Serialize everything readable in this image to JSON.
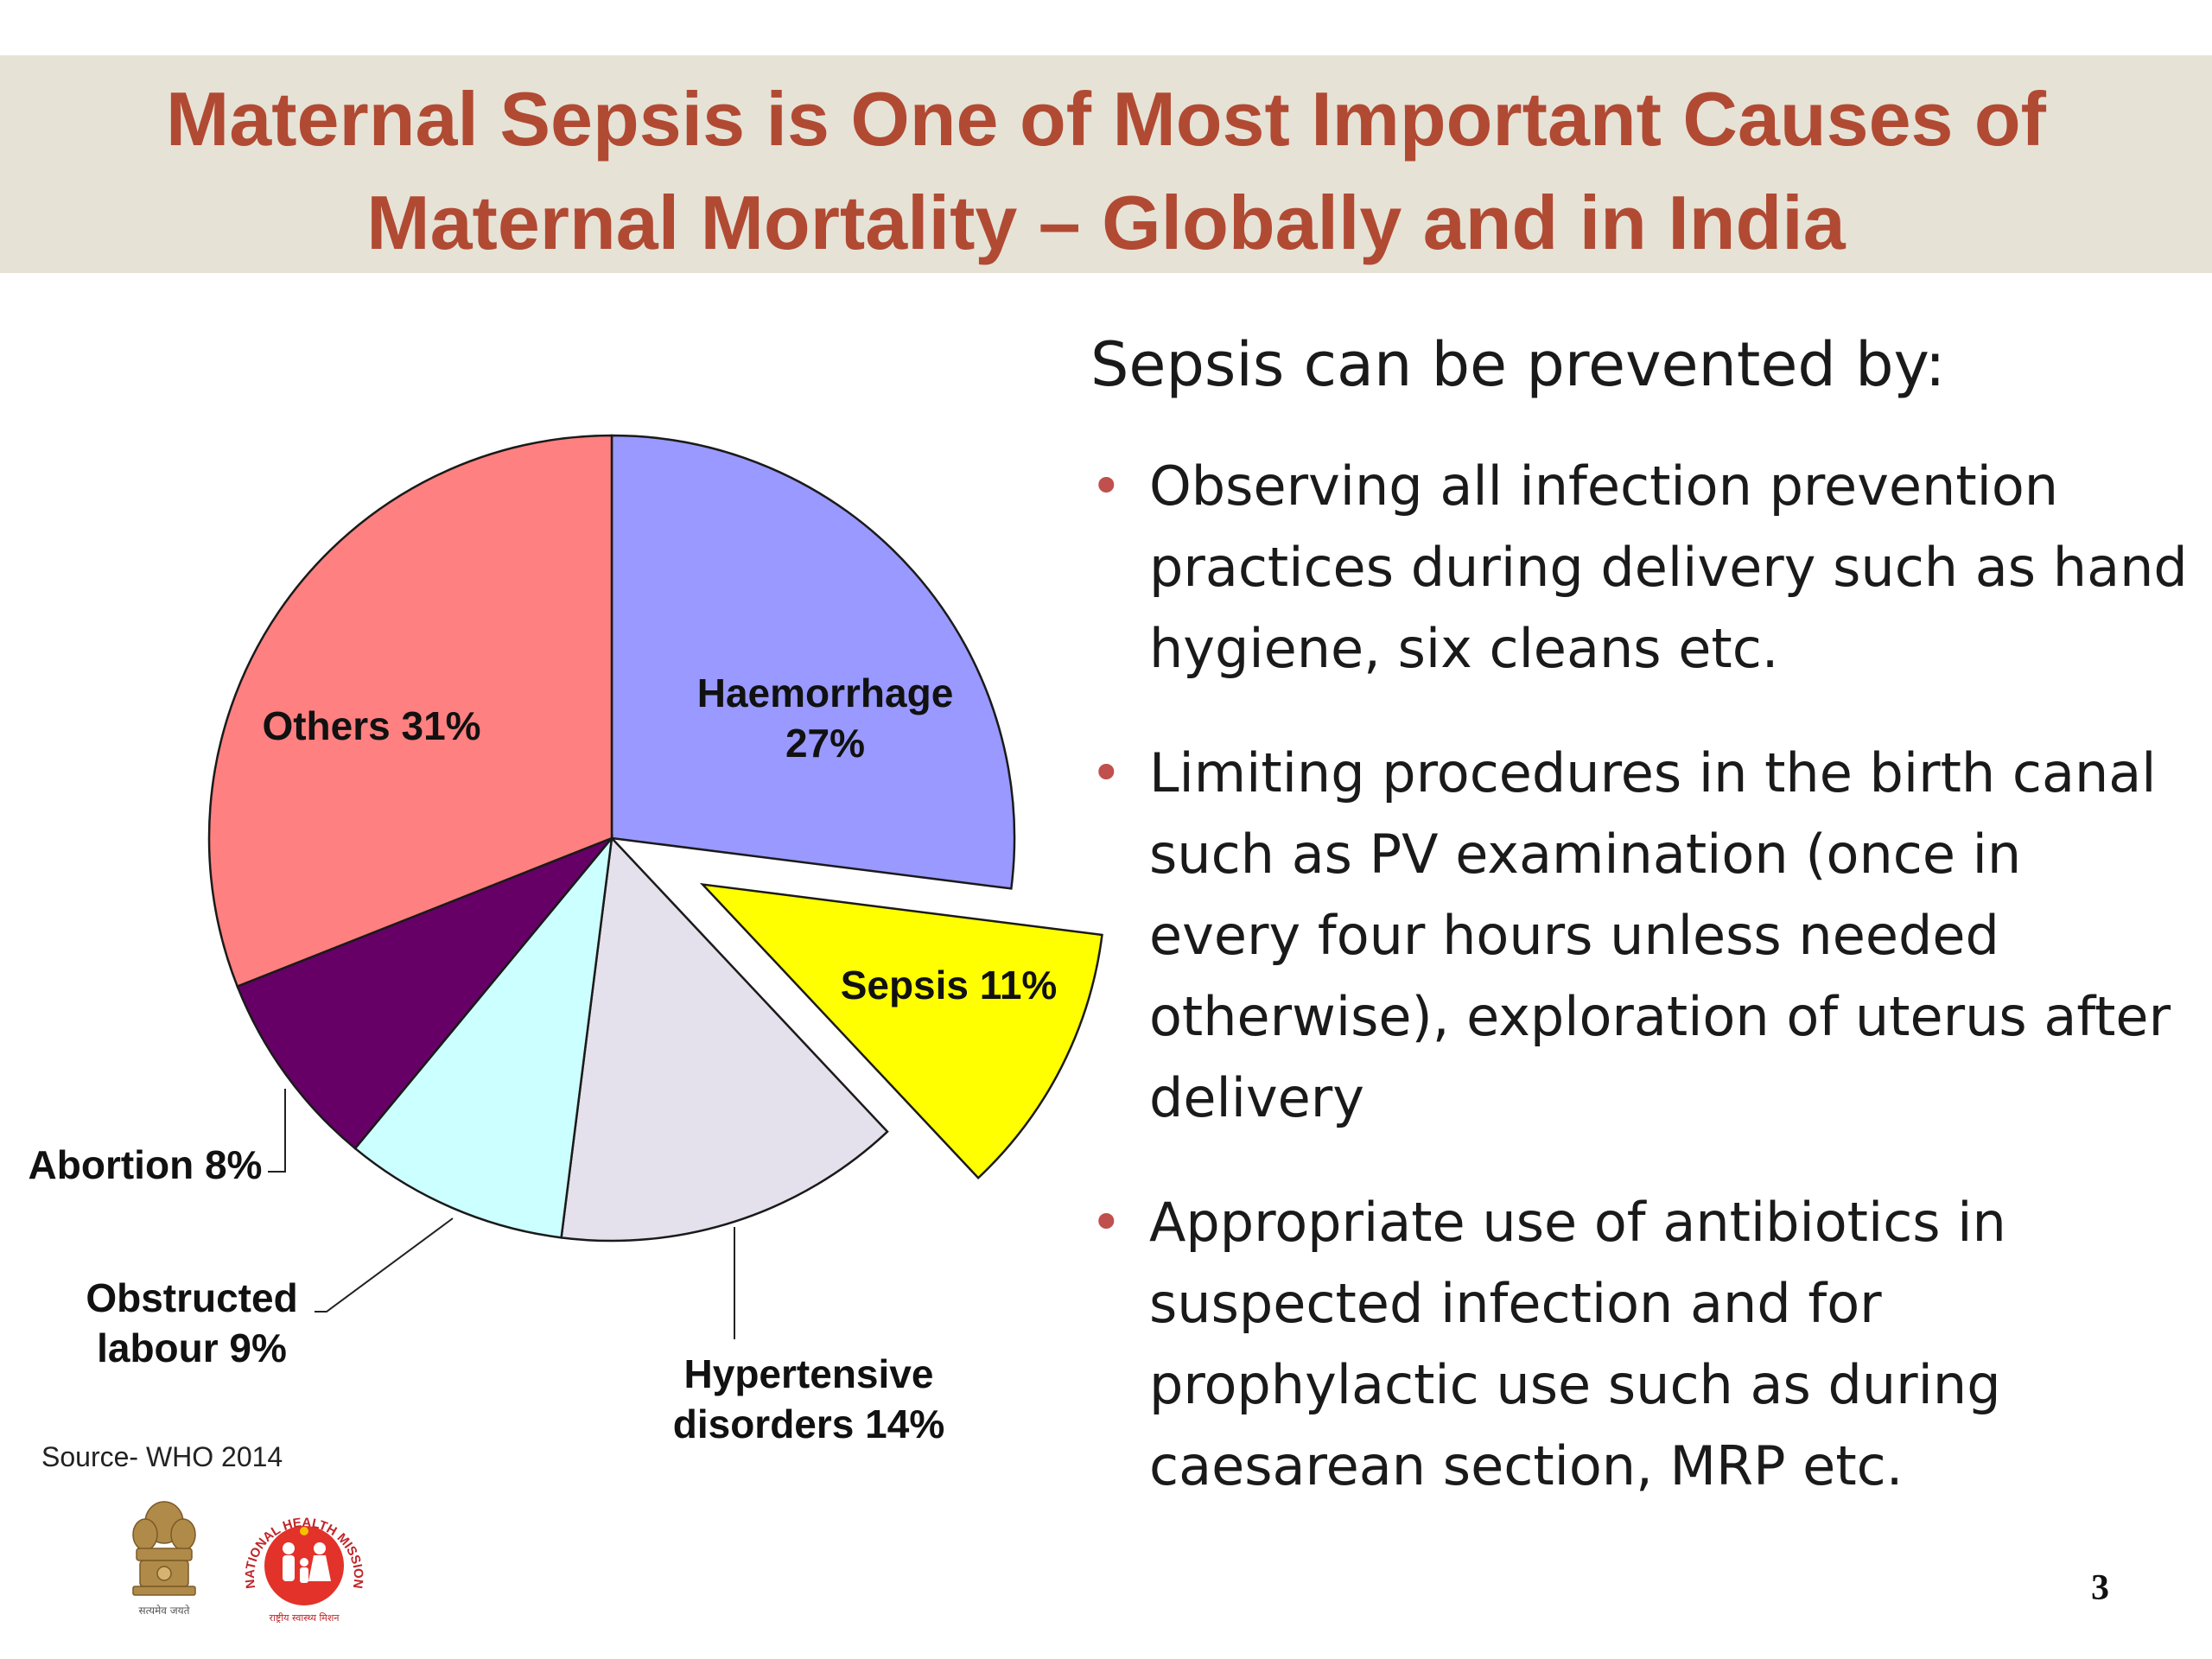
{
  "slide": {
    "title_line1": "Maternal Sepsis is One of Most Important Causes of",
    "title_line2": "Maternal Mortality – Globally and in India",
    "source": "Source- WHO 2014",
    "page_number": "3"
  },
  "prevention": {
    "heading": "Sepsis can be prevented by:",
    "bullets": [
      "Observing all infection prevention practices during delivery such as hand hygiene, six cleans etc.",
      "Limiting procedures in the birth canal such as PV examination (once in every four hours unless needed otherwise), exploration of uterus after delivery",
      "Appropriate use of antibiotics in suspected infection and for prophylactic use such as during caesarean section, MRP etc."
    ]
  },
  "logos": {
    "emblem_caption": "सत्यमेव जयते",
    "nhm_text": "NATIONAL HEALTH MISSION",
    "nhm_hindi": "राष्ट्रीय स्वास्थ्य मिशन"
  },
  "chart_data": {
    "type": "pie",
    "title": "",
    "start_angle_deg": 0,
    "direction": "clockwise",
    "exploded": [
      "Sepsis"
    ],
    "slices": [
      {
        "name": "Haemorrhage",
        "value": 27,
        "label_lines": [
          "Haemorrhage",
          "27%"
        ],
        "color": "#9999ff"
      },
      {
        "name": "Sepsis",
        "value": 11,
        "label_lines": [
          "Sepsis 11%"
        ],
        "color": "#ffff00"
      },
      {
        "name": "Hypertensive disorders",
        "value": 14,
        "label_lines": [
          "Hypertensive",
          "disorders 14%"
        ],
        "color": "#e4e0ec"
      },
      {
        "name": "Obstructed labour",
        "value": 9,
        "label_lines": [
          "Obstructed",
          "labour 9%"
        ],
        "color": "#ccffff"
      },
      {
        "name": "Abortion",
        "value": 8,
        "label_lines": [
          "Abortion 8%"
        ],
        "color": "#660066"
      },
      {
        "name": "Others",
        "value": 31,
        "label_lines": [
          "Others 31%"
        ],
        "color": "#ff8080"
      }
    ]
  }
}
